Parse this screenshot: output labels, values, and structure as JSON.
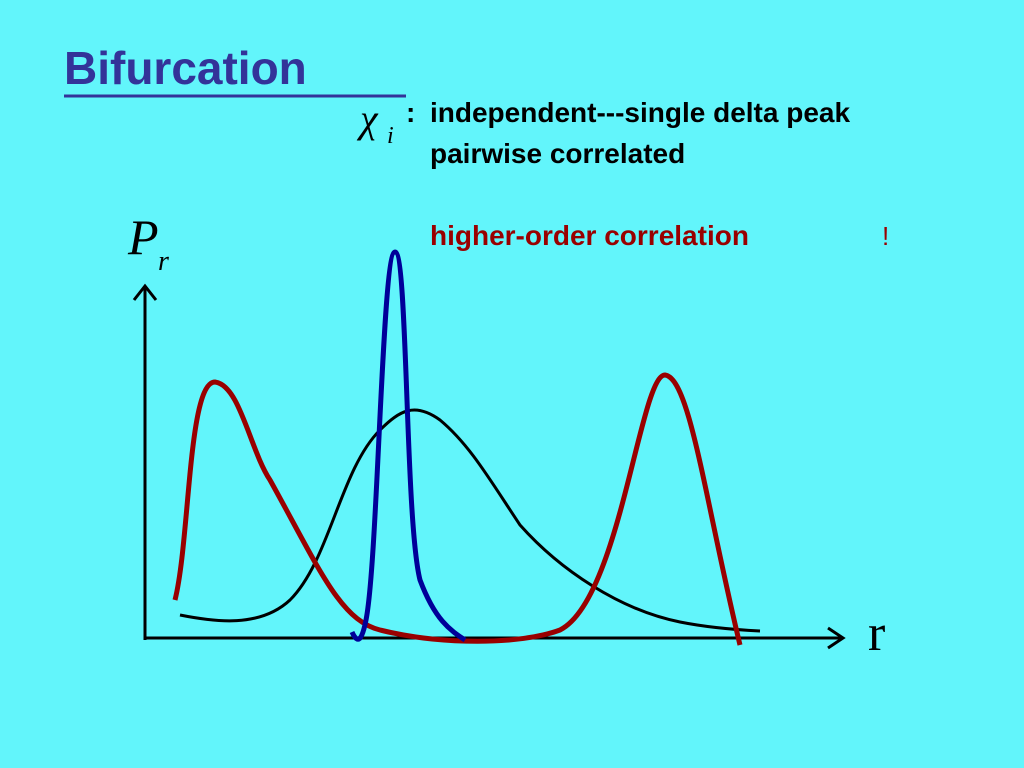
{
  "title": "Bifurcation",
  "legend": {
    "symbol": "χ",
    "subscript": "i",
    "separator": ":",
    "items": [
      "independent---single delta peak",
      "pairwise correlated",
      "higher-order correlation"
    ],
    "exclamation": "!"
  },
  "axes": {
    "y_label": "P",
    "y_subscript": "r",
    "x_label": "r"
  }
}
